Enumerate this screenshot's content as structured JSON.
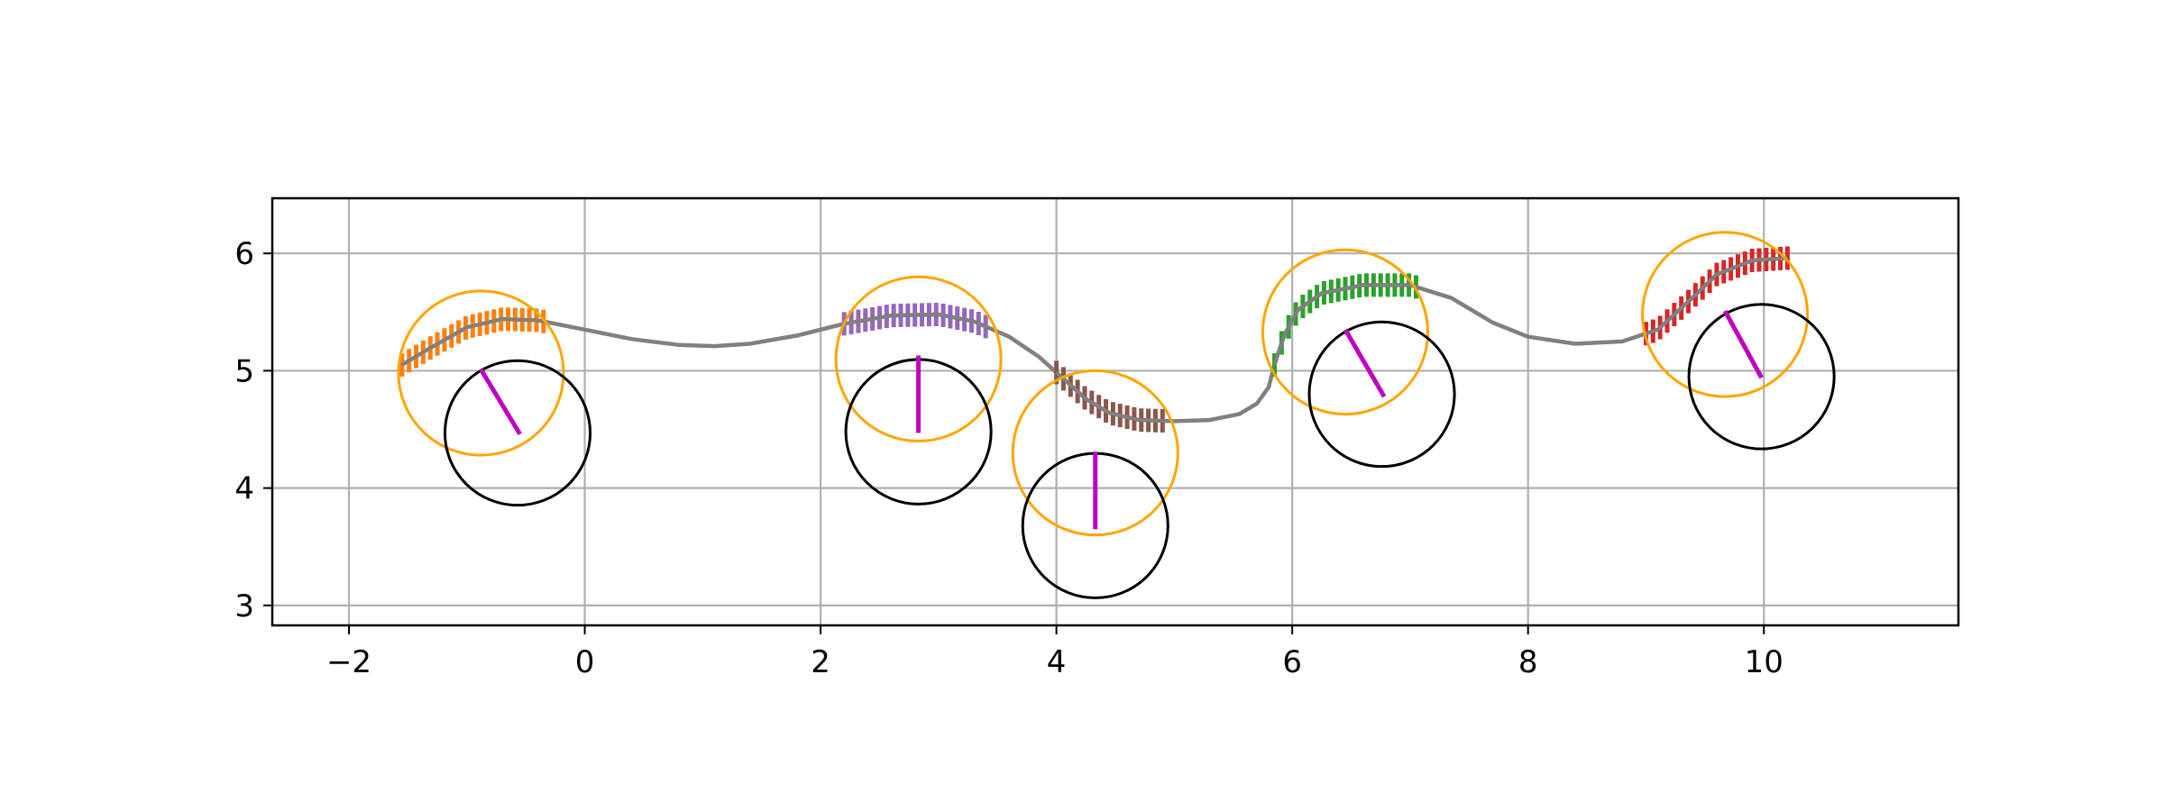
{
  "chart_data": {
    "type": "scatter",
    "title": "",
    "xlabel": "",
    "ylabel": "",
    "xlim": [
      -2.65,
      11.65
    ],
    "ylim": [
      2.83,
      6.47
    ],
    "grid": true,
    "x_ticks": [
      -2,
      0,
      2,
      4,
      6,
      8,
      10
    ],
    "x_tick_labels": [
      "−2",
      "0",
      "2",
      "4",
      "6",
      "8",
      "10"
    ],
    "y_ticks": [
      3,
      4,
      5,
      6
    ],
    "y_tick_labels": [
      "3",
      "4",
      "5",
      "6"
    ],
    "path": {
      "color": "#808080",
      "points": [
        [
          -1.55,
          5.05
        ],
        [
          -1.3,
          5.2
        ],
        [
          -1.0,
          5.37
        ],
        [
          -0.7,
          5.44
        ],
        [
          -0.4,
          5.43
        ],
        [
          0.0,
          5.35
        ],
        [
          0.4,
          5.27
        ],
        [
          0.8,
          5.22
        ],
        [
          1.1,
          5.21
        ],
        [
          1.4,
          5.23
        ],
        [
          1.8,
          5.3
        ],
        [
          2.2,
          5.4
        ],
        [
          2.6,
          5.47
        ],
        [
          3.0,
          5.48
        ],
        [
          3.3,
          5.42
        ],
        [
          3.6,
          5.29
        ],
        [
          3.85,
          5.12
        ],
        [
          4.05,
          4.94
        ],
        [
          4.25,
          4.76
        ],
        [
          4.45,
          4.64
        ],
        [
          4.7,
          4.58
        ],
        [
          5.0,
          4.57
        ],
        [
          5.3,
          4.58
        ],
        [
          5.55,
          4.63
        ],
        [
          5.7,
          4.72
        ],
        [
          5.8,
          4.86
        ],
        [
          5.85,
          5.05
        ],
        [
          5.93,
          5.3
        ],
        [
          6.05,
          5.52
        ],
        [
          6.25,
          5.66
        ],
        [
          6.6,
          5.73
        ],
        [
          7.0,
          5.73
        ],
        [
          7.35,
          5.62
        ],
        [
          7.7,
          5.41
        ],
        [
          8.0,
          5.29
        ],
        [
          8.4,
          5.23
        ],
        [
          8.8,
          5.25
        ],
        [
          9.1,
          5.35
        ],
        [
          9.35,
          5.58
        ],
        [
          9.6,
          5.82
        ],
        [
          9.9,
          5.94
        ],
        [
          10.2,
          5.96
        ]
      ]
    },
    "segments": [
      {
        "color": "#ff7f0e",
        "x_start": -1.55,
        "x_end": -0.3
      },
      {
        "color": "#9467bd",
        "x_start": 2.2,
        "x_end": 3.45
      },
      {
        "color": "#8c564b",
        "x_start": 4.0,
        "x_end": 4.95
      },
      {
        "color": "#2ca02c",
        "x_start": 5.85,
        "x_end": 7.1
      },
      {
        "color": "#d62728",
        "x_start": 9.0,
        "x_end": 10.2
      }
    ],
    "circle_radius": 0.7,
    "orange_circles": {
      "color": "#ffa500",
      "centers": [
        [
          -0.88,
          4.98
        ],
        [
          2.83,
          5.1
        ],
        [
          4.33,
          4.3
        ],
        [
          6.45,
          5.33
        ],
        [
          9.67,
          5.48
        ]
      ]
    },
    "black_circles": {
      "color": "#000000",
      "centers": [
        [
          -0.57,
          4.47
        ],
        [
          2.83,
          4.48
        ],
        [
          4.33,
          3.68
        ],
        [
          6.76,
          4.8
        ],
        [
          9.98,
          4.95
        ]
      ]
    },
    "heading_lines": {
      "color": "#c000c0",
      "lines": [
        [
          [
            -0.88,
            5.01
          ],
          [
            -0.55,
            4.46
          ]
        ],
        [
          [
            2.83,
            5.13
          ],
          [
            2.83,
            4.47
          ]
        ],
        [
          [
            4.33,
            4.31
          ],
          [
            4.33,
            3.65
          ]
        ],
        [
          [
            6.45,
            5.35
          ],
          [
            6.78,
            4.78
          ]
        ],
        [
          [
            9.67,
            5.51
          ],
          [
            9.98,
            4.94
          ]
        ]
      ]
    }
  }
}
